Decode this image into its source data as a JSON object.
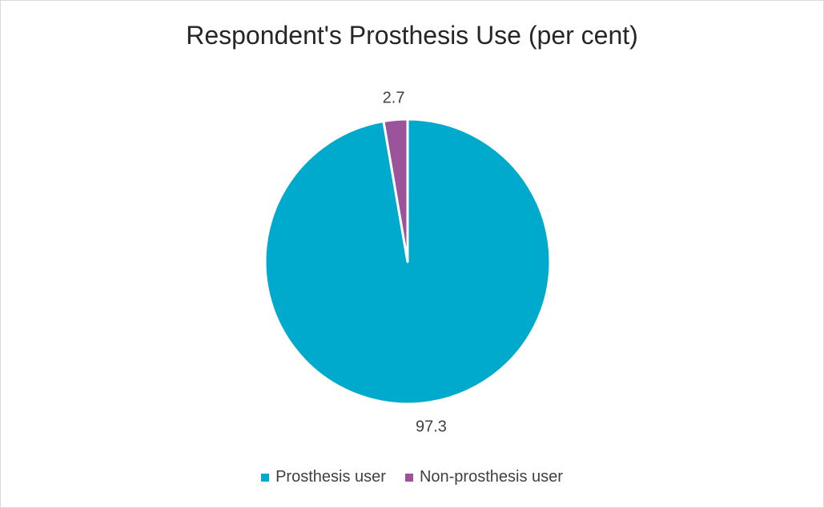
{
  "chart_data": {
    "type": "pie",
    "title": "Respondent's Prosthesis Use (per cent)",
    "legend_position": "bottom",
    "slices": [
      {
        "label": "Prosthesis user",
        "value": 97.3,
        "color": "#00AACC",
        "data_label": "97.3"
      },
      {
        "label": "Non-prosthesis user",
        "value": 2.7,
        "color": "#9B539A",
        "data_label": "2.7"
      }
    ]
  }
}
